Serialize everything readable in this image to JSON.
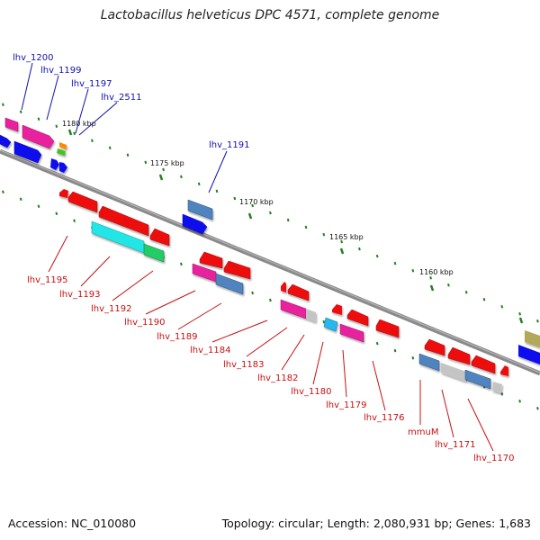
{
  "title": "Lactobacillus helveticus DPC 4571, complete genome",
  "footer": {
    "accession": "Accession: NC_010080",
    "topology": "Topology: circular; Length: 2,080,931 bp; Genes: 1,683"
  },
  "ticks": [
    "1180 kbp",
    "1175 kbp",
    "1170 kbp",
    "1165 kbp",
    "1160 kbp"
  ],
  "upper_labels": [
    "lhv_1200",
    "lhv_1199",
    "lhv_1197",
    "lhv_2511",
    "lhv_1191"
  ],
  "lower_labels": [
    "lhv_1195",
    "lhv_1193",
    "lhv_1192",
    "lhv_1190",
    "lhv_1189",
    "lhv_1184",
    "lhv_1183",
    "lhv_1182",
    "lhv_1180",
    "lhv_1179",
    "lhv_1176",
    "mmuM",
    "lhv_1171",
    "lhv_1170"
  ],
  "colors": {
    "backbone": "#808080",
    "upper_label": "#1010b0",
    "lower_label": "#c81010",
    "tick": "#208020",
    "red": "#ee1111",
    "blue": "#1111ee",
    "magenta": "#e8209c",
    "steel": "#4f84bf",
    "cyan": "#22e6e6",
    "green": "#22cc66",
    "grey": "#c4c4c4",
    "olive": "#b3a75a",
    "orange": "#ff8800",
    "lime": "#44c21c",
    "sky": "#28b8f0"
  }
}
